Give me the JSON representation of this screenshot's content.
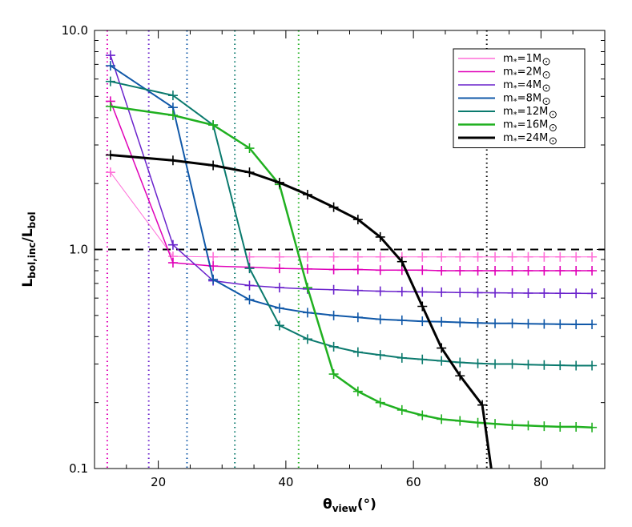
{
  "chart_data": {
    "type": "line",
    "xlabel": {
      "main": "θ",
      "sub": "view",
      "unit": "(°)"
    },
    "ylabel": {
      "l1": "L",
      "s1": "bol,inc",
      "sep": "/",
      "l2": "L",
      "s2": "bol"
    },
    "xlim": [
      10,
      90
    ],
    "ylim": [
      0.1,
      10.0
    ],
    "yscale": "log",
    "xticks": [
      20,
      40,
      60,
      80
    ],
    "yticks": [
      0.1,
      1.0,
      10.0
    ],
    "ytick_labels": [
      "0.1",
      "1.0",
      "10.0"
    ],
    "reference_line": {
      "y": 1.0,
      "style": "dashed",
      "color": "#000000"
    },
    "legend_position": "top-right",
    "series": [
      {
        "name": "m*=1M⊙",
        "label_main": "m",
        "label_sub": "*",
        "label_rest": "=1M",
        "color": "#ff6fd8",
        "width": 1,
        "critical_angle": 12.0,
        "x": [
          12.5,
          22.3,
          28.6,
          34.3,
          39.0,
          43.4,
          47.5,
          51.3,
          54.8,
          58.2,
          61.4,
          64.4,
          67.3,
          70.1,
          72.8,
          75.5,
          78.0,
          80.5,
          83.0,
          85.5,
          88.0
        ],
        "y": [
          2.25,
          0.93,
          0.925,
          0.925,
          0.925,
          0.925,
          0.925,
          0.925,
          0.925,
          0.925,
          0.925,
          0.925,
          0.925,
          0.925,
          0.925,
          0.925,
          0.925,
          0.925,
          0.925,
          0.925,
          0.925
        ]
      },
      {
        "name": "m*=2M⊙",
        "label_main": "m",
        "label_sub": "*",
        "label_rest": "=2M",
        "color": "#e000b8",
        "width": 1.5,
        "critical_angle": 12.0,
        "x": [
          12.5,
          22.3,
          28.6,
          34.3,
          39.0,
          43.4,
          47.5,
          51.3,
          54.8,
          58.2,
          61.4,
          64.4,
          67.3,
          70.1,
          72.8,
          75.5,
          78.0,
          80.5,
          83.0,
          85.5,
          88.0
        ],
        "y": [
          4.75,
          0.87,
          0.84,
          0.83,
          0.82,
          0.815,
          0.81,
          0.81,
          0.805,
          0.805,
          0.805,
          0.8,
          0.8,
          0.8,
          0.8,
          0.8,
          0.8,
          0.8,
          0.8,
          0.8,
          0.8
        ]
      },
      {
        "name": "m*=4M⊙",
        "label_main": "m",
        "label_sub": "*",
        "label_rest": "=4M",
        "color": "#6a22cc",
        "width": 1.5,
        "critical_angle": 18.5,
        "x": [
          12.5,
          22.3,
          28.6,
          34.3,
          39.0,
          43.4,
          47.5,
          51.3,
          54.8,
          58.2,
          61.4,
          64.4,
          67.3,
          70.1,
          72.8,
          75.5,
          78.0,
          80.5,
          83.0,
          85.5,
          88.0
        ],
        "y": [
          7.7,
          1.05,
          0.72,
          0.685,
          0.67,
          0.66,
          0.655,
          0.65,
          0.645,
          0.642,
          0.64,
          0.638,
          0.636,
          0.635,
          0.634,
          0.633,
          0.632,
          0.632,
          0.631,
          0.631,
          0.63
        ]
      },
      {
        "name": "m*=8M⊙",
        "label_main": "m",
        "label_sub": "*",
        "label_rest": "=8M",
        "color": "#1058a8",
        "width": 2,
        "critical_angle": 24.5,
        "x": [
          12.5,
          22.3,
          28.6,
          34.3,
          39.0,
          43.4,
          47.5,
          51.3,
          54.8,
          58.2,
          61.4,
          64.4,
          67.3,
          70.1,
          72.8,
          75.5,
          78.0,
          80.5,
          83.0,
          85.5,
          88.0
        ],
        "y": [
          6.9,
          4.45,
          0.73,
          0.59,
          0.54,
          0.515,
          0.5,
          0.49,
          0.48,
          0.475,
          0.47,
          0.468,
          0.465,
          0.462,
          0.46,
          0.46,
          0.458,
          0.457,
          0.456,
          0.455,
          0.455
        ]
      },
      {
        "name": "m*=12M⊙",
        "label_main": "m",
        "label_sub": "*",
        "label_rest": "=12M",
        "color": "#0b7a6e",
        "width": 2,
        "critical_angle": 32.0,
        "x": [
          12.5,
          22.3,
          28.6,
          34.3,
          39.0,
          43.4,
          47.5,
          51.3,
          54.8,
          58.2,
          61.4,
          64.4,
          67.3,
          70.1,
          72.8,
          75.5,
          78.0,
          80.5,
          83.0,
          85.5,
          88.0
        ],
        "y": [
          5.85,
          5.05,
          3.7,
          0.82,
          0.45,
          0.39,
          0.36,
          0.34,
          0.33,
          0.32,
          0.315,
          0.31,
          0.305,
          0.302,
          0.3,
          0.3,
          0.298,
          0.297,
          0.296,
          0.295,
          0.295
        ]
      },
      {
        "name": "m*=16M⊙",
        "label_main": "m",
        "label_sub": "*",
        "label_rest": "=16M",
        "color": "#20b020",
        "width": 2.5,
        "critical_angle": 42.0,
        "x": [
          12.5,
          22.3,
          28.6,
          34.3,
          39.0,
          43.4,
          47.5,
          51.3,
          54.8,
          58.2,
          61.4,
          64.4,
          67.3,
          70.1,
          72.8,
          75.5,
          78.0,
          80.5,
          83.0,
          85.5,
          88.0
        ],
        "y": [
          4.5,
          4.1,
          3.7,
          2.9,
          1.98,
          0.67,
          0.27,
          0.225,
          0.2,
          0.185,
          0.175,
          0.168,
          0.165,
          0.162,
          0.16,
          0.158,
          0.157,
          0.156,
          0.155,
          0.155,
          0.154
        ]
      },
      {
        "name": "m*=24M⊙",
        "label_main": "m",
        "label_sub": "*",
        "label_rest": "=24M",
        "color": "#000000",
        "width": 3,
        "critical_angle": 71.5,
        "x": [
          12.5,
          22.3,
          28.6,
          34.3,
          39.0,
          43.4,
          47.5,
          51.3,
          54.8,
          58.2,
          61.4,
          64.4,
          67.3,
          70.8,
          72.2
        ],
        "y": [
          2.7,
          2.55,
          2.42,
          2.25,
          2.02,
          1.78,
          1.56,
          1.37,
          1.14,
          0.88,
          0.55,
          0.355,
          0.265,
          0.195,
          0.1
        ]
      }
    ]
  }
}
